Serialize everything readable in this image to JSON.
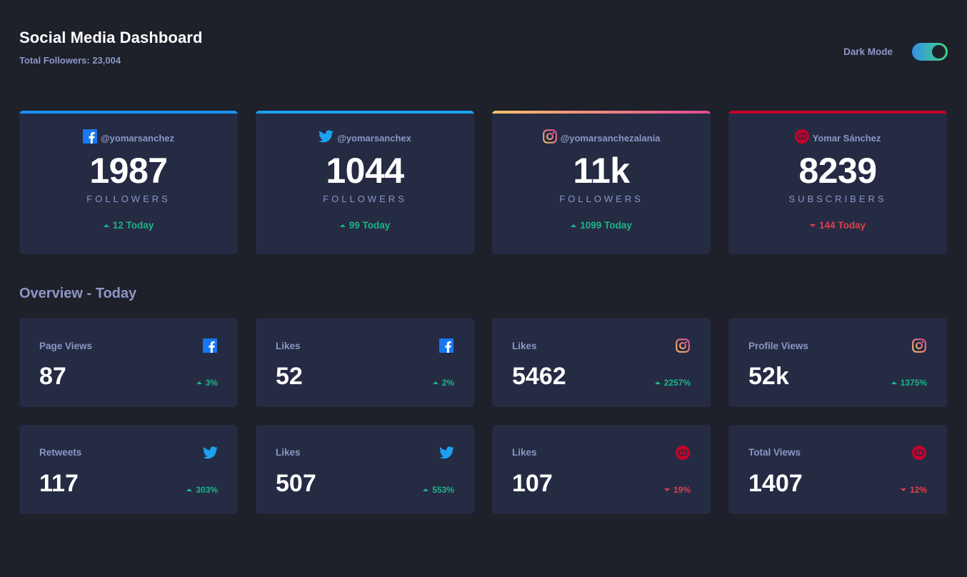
{
  "header": {
    "title": "Social Media Dashboard",
    "total_followers": "Total Followers: 23,004",
    "dark_mode_label": "Dark Mode"
  },
  "colors": {
    "facebook": "#1877f2",
    "twitter": "#1da1f2",
    "instagram_start": "#fdc468",
    "instagram_end": "#df4996",
    "youtube": "#c4032a",
    "up": "#1db489",
    "down": "#dc414c"
  },
  "cards": [
    {
      "platform": "facebook",
      "icon": "facebook-icon",
      "handle": "@yomarsanchez",
      "count": "1987",
      "label": "FOLLOWERS",
      "today": "12 Today",
      "trend": "up"
    },
    {
      "platform": "twitter",
      "icon": "twitter-icon",
      "handle": "@yomarsanchex",
      "count": "1044",
      "label": "FOLLOWERS",
      "today": "99 Today",
      "trend": "up"
    },
    {
      "platform": "instagram",
      "icon": "instagram-icon",
      "handle": "@yomarsanchezalania",
      "count": "11k",
      "label": "FOLLOWERS",
      "today": "1099 Today",
      "trend": "up"
    },
    {
      "platform": "youtube",
      "icon": "youtube-icon",
      "handle": "Yomar Sánchez",
      "count": "8239",
      "label": "SUBSCRIBERS",
      "today": "144 Today",
      "trend": "down"
    }
  ],
  "overview": {
    "title": "Overview - Today",
    "items": [
      {
        "label": "Page Views",
        "icon": "facebook-icon",
        "value": "87",
        "pct": "3%",
        "trend": "up"
      },
      {
        "label": "Likes",
        "icon": "facebook-icon",
        "value": "52",
        "pct": "2%",
        "trend": "up"
      },
      {
        "label": "Likes",
        "icon": "instagram-icon",
        "value": "5462",
        "pct": "2257%",
        "trend": "up"
      },
      {
        "label": "Profile Views",
        "icon": "instagram-icon",
        "value": "52k",
        "pct": "1375%",
        "trend": "up"
      },
      {
        "label": "Retweets",
        "icon": "twitter-icon",
        "value": "117",
        "pct": "303%",
        "trend": "up"
      },
      {
        "label": "Likes",
        "icon": "twitter-icon",
        "value": "507",
        "pct": "553%",
        "trend": "up"
      },
      {
        "label": "Likes",
        "icon": "youtube-icon",
        "value": "107",
        "pct": "19%",
        "trend": "down"
      },
      {
        "label": "Total Views",
        "icon": "youtube-icon",
        "value": "1407",
        "pct": "12%",
        "trend": "down"
      }
    ]
  }
}
